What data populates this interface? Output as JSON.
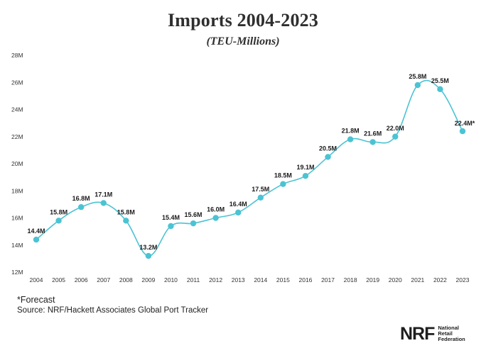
{
  "chart_data": {
    "type": "line",
    "title": "Imports 2004-2023",
    "subtitle": "(TEU-Millions)",
    "x": [
      "2004",
      "2005",
      "2006",
      "2007",
      "2008",
      "2009",
      "2010",
      "2011",
      "2012",
      "2013",
      "2014",
      "2015",
      "2016",
      "2017",
      "2018",
      "2019",
      "2020",
      "2021",
      "2022",
      "2023"
    ],
    "values": [
      14.4,
      15.8,
      16.8,
      17.1,
      15.8,
      13.2,
      15.4,
      15.6,
      16.0,
      16.4,
      17.5,
      18.5,
      19.1,
      20.5,
      21.8,
      21.6,
      22.0,
      25.8,
      25.5,
      22.4
    ],
    "data_labels": [
      "14.4M",
      "15.8M",
      "16.8M",
      "17.1M",
      "15.8M",
      "13.2M",
      "15.4M",
      "15.6M",
      "16.0M",
      "16.4M",
      "17.5M",
      "18.5M",
      "19.1M",
      "20.5M",
      "21.8M",
      "21.6M",
      "22.0M",
      "25.8M",
      "25.5M",
      "22.4M*"
    ],
    "ylim": [
      12,
      28
    ],
    "yticks": [
      12,
      14,
      16,
      18,
      20,
      22,
      24,
      26,
      28
    ],
    "ytick_labels": [
      "12M",
      "14M",
      "16M",
      "18M",
      "20M",
      "22M",
      "24M",
      "26M",
      "28M"
    ],
    "xlabel": "",
    "ylabel": "",
    "grid": false,
    "line_color": "#4bc3d3",
    "marker_color": "#4bc3d3"
  },
  "footnote": "*Forecast",
  "source": "Source: NRF/Hackett Associates Global Port Tracker",
  "logo": {
    "mark": "NRF",
    "words": [
      "National",
      "Retail",
      "Federation"
    ]
  }
}
